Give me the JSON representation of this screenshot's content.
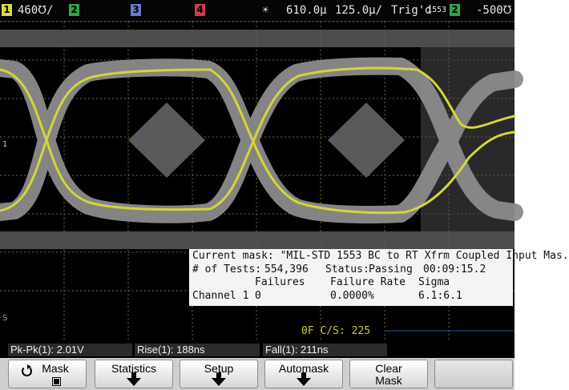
{
  "topbar": {
    "ch1_num": "1",
    "ch1_scale": "460℧/",
    "ch2_num": "2",
    "ch3_num": "3",
    "ch4_num": "4",
    "trigger_symbol": "☀",
    "delay": "610.0µ",
    "timebase": "125.0µ/",
    "trig_status": "Trig'd",
    "trig_mode": "1553",
    "trig_source": "2",
    "trig_level": "-500℧"
  },
  "markers": {
    "ch1_ref": "1",
    "ground_ref": "S"
  },
  "mask_info": {
    "current_mask": "Current mask: \"MIL-STD 1553 BC to RT Xfrm Coupled Input Mas.",
    "tests_label": "# of Tests:",
    "tests_value": "554,396",
    "status_label": "Status:",
    "status_value": "Passing",
    "elapsed": "00:09:15.2",
    "col_failures": "Failures",
    "col_failure_rate": "Failure Rate",
    "col_sigma": "Sigma",
    "row_channel": "Channel 1",
    "row_failures": "0",
    "row_failure_rate": "0.0000%",
    "row_sigma": "6.1:6.1"
  },
  "counter": {
    "text": "0F  C/S:  225"
  },
  "measurements": [
    {
      "label": "Pk-Pk(1): 2.01V"
    },
    {
      "label": "Rise(1): 188ns"
    },
    {
      "label": "Fall(1): 211ns"
    }
  ],
  "softkeys": [
    {
      "label": "Mask",
      "indicator": "checked"
    },
    {
      "label": "Statistics"
    },
    {
      "label": "Setup"
    },
    {
      "label": "Automask"
    },
    {
      "label": "Clear\nMask"
    }
  ],
  "colors": {
    "trace": "#d4d43a",
    "persistence": "#8c8c8c",
    "mask_region": "#5a5a5a",
    "grid": "#6a6a40",
    "ch1": "#d8d83a",
    "ch2": "#2fa64a",
    "ch3": "#6b7cc9",
    "ch4": "#d2394a"
  }
}
